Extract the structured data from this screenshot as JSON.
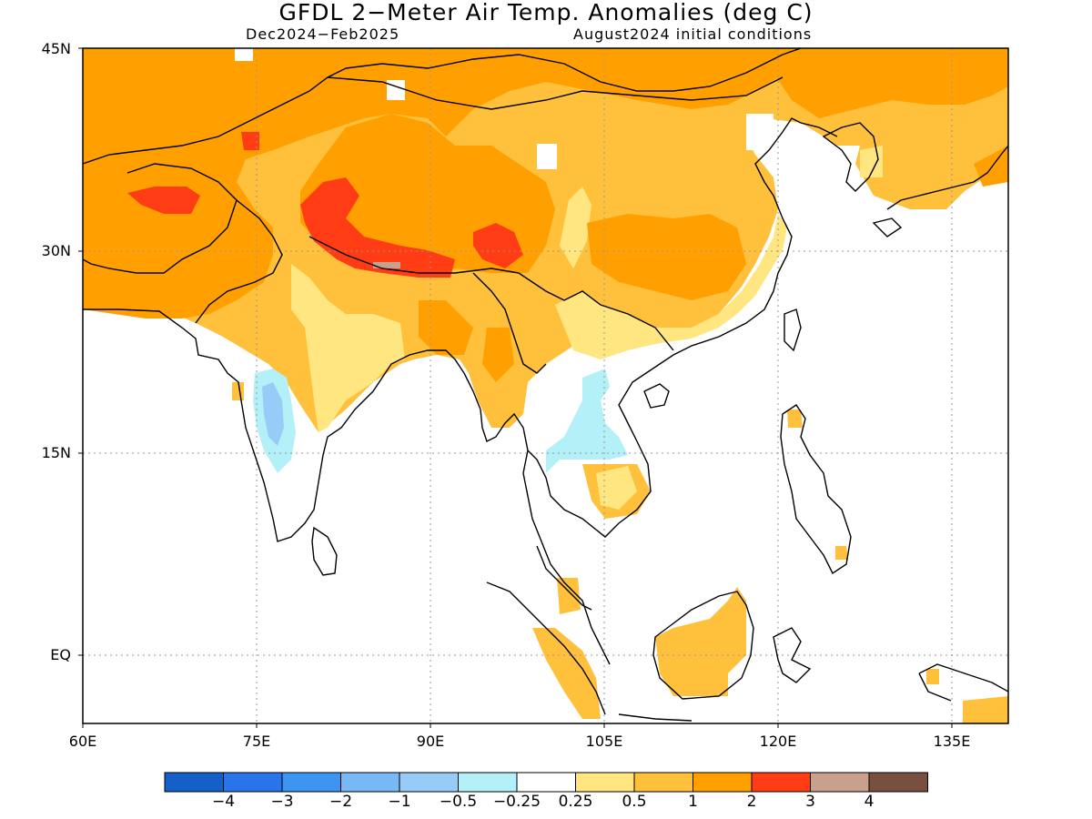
{
  "header": {
    "title": "GFDL 2−Meter Air Temp. Anomalies (deg C)",
    "period": "Dec2024−Feb2025",
    "init": "August2024 initial conditions"
  },
  "axes": {
    "lat_labels": [
      "45N",
      "30N",
      "15N",
      "EQ"
    ],
    "lon_labels": [
      "60E",
      "75E",
      "90E",
      "105E",
      "120E",
      "135E"
    ],
    "lat_range": [
      -5,
      45
    ],
    "lon_range": [
      60,
      140
    ]
  },
  "colorbar": {
    "labels": [
      "−4",
      "−3",
      "−2",
      "−1",
      "−0.5",
      "−0.25",
      "0.25",
      "0.5",
      "1",
      "2",
      "3",
      "4"
    ],
    "colors": [
      "#1560c8",
      "#2874e8",
      "#3c96f0",
      "#78b9f5",
      "#98ccf8",
      "#b4f0f8",
      "#ffffff",
      "#ffe680",
      "#ffc03c",
      "#ffa000",
      "#ff3c14",
      "#c8a08c",
      "#785040"
    ]
  }
}
